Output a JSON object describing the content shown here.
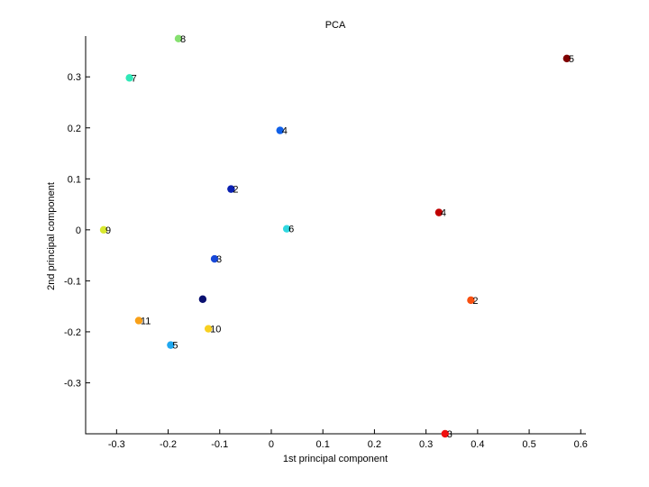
{
  "chart_data": {
    "type": "scatter",
    "title": "PCA",
    "xlabel": "1st principal component",
    "ylabel": "2nd principal component",
    "xlim": [
      -0.36,
      0.61
    ],
    "ylim": [
      -0.4,
      0.38
    ],
    "xticks": [
      -0.3,
      -0.2,
      -0.1,
      0,
      0.1,
      0.2,
      0.3,
      0.4,
      0.5,
      0.6
    ],
    "yticks": [
      -0.3,
      -0.2,
      -0.1,
      0,
      0.1,
      0.2,
      0.3
    ],
    "xtick_labels": [
      "-0.3",
      "-0.2",
      "-0.1",
      "0",
      "0.1",
      "0.2",
      "0.3",
      "0.4",
      "0.5",
      "0.6"
    ],
    "ytick_labels": [
      "-0.3",
      "-0.2",
      "-0.1",
      "0",
      "0.1",
      "0.2",
      "0.3"
    ],
    "grid": false,
    "points": [
      {
        "label": "8",
        "x": -0.18,
        "y": 0.375,
        "color": "#86e070"
      },
      {
        "label": "7",
        "x": -0.275,
        "y": 0.298,
        "color": "#30e8b8"
      },
      {
        "label": "4",
        "x": 0.017,
        "y": 0.195,
        "color": "#1060e8"
      },
      {
        "label": "2",
        "x": -0.078,
        "y": 0.08,
        "color": "#0a20b0"
      },
      {
        "label": "9",
        "x": -0.325,
        "y": 0.0,
        "color": "#d8e830"
      },
      {
        "label": "6",
        "x": 0.03,
        "y": 0.002,
        "color": "#30d8e0"
      },
      {
        "label": "3",
        "x": -0.11,
        "y": -0.057,
        "color": "#1848d8"
      },
      {
        "label": "",
        "x": -0.133,
        "y": -0.136,
        "color": "#0a1070"
      },
      {
        "label": "11",
        "x": -0.257,
        "y": -0.178,
        "color": "#f8a018"
      },
      {
        "label": "10",
        "x": -0.122,
        "y": -0.194,
        "color": "#f8d020"
      },
      {
        "label": "5",
        "x": -0.195,
        "y": -0.226,
        "color": "#20a8f0"
      },
      {
        "label": "5",
        "x": 0.573,
        "y": 0.336,
        "color": "#800000"
      },
      {
        "label": "4",
        "x": 0.325,
        "y": 0.034,
        "color": "#c00000"
      },
      {
        "label": "2",
        "x": 0.387,
        "y": -0.138,
        "color": "#f85010"
      },
      {
        "label": "3",
        "x": 0.337,
        "y": -0.4,
        "color": "#f01010"
      }
    ]
  }
}
